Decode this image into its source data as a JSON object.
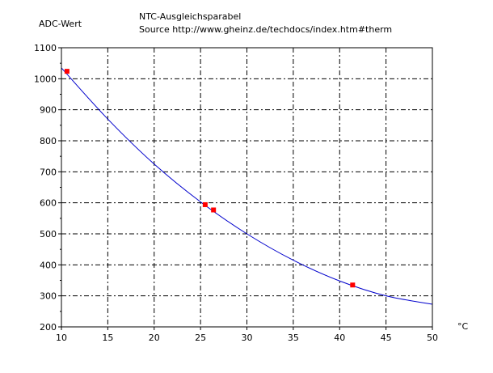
{
  "chart_data": {
    "type": "scatter",
    "title": "NTC-Ausgleichsparabel",
    "subtitle": "Source http://www.gheinz.de/techdocs/index.htm#therm",
    "xlabel": "°C",
    "ylabel": "ADC-Wert",
    "xlim": [
      10,
      50
    ],
    "ylim": [
      200,
      1100
    ],
    "xticks": [
      10,
      15,
      20,
      25,
      30,
      35,
      40,
      45,
      50
    ],
    "yticks": [
      200,
      300,
      400,
      500,
      600,
      700,
      800,
      900,
      1000,
      1100
    ],
    "grid": true,
    "legend": "none",
    "series": [
      {
        "kind": "points",
        "color": "#ff0000",
        "x": [
          10.6,
          25.5,
          26.4,
          41.4
        ],
        "y": [
          1024,
          594,
          577,
          335
        ]
      },
      {
        "kind": "fit-curve",
        "color": "#0000cc",
        "x": [
          10,
          15,
          20,
          25,
          30,
          35,
          40,
          45,
          50
        ],
        "y": [
          1035,
          870,
          725,
          603,
          500,
          415,
          348,
          300,
          273
        ]
      }
    ]
  }
}
